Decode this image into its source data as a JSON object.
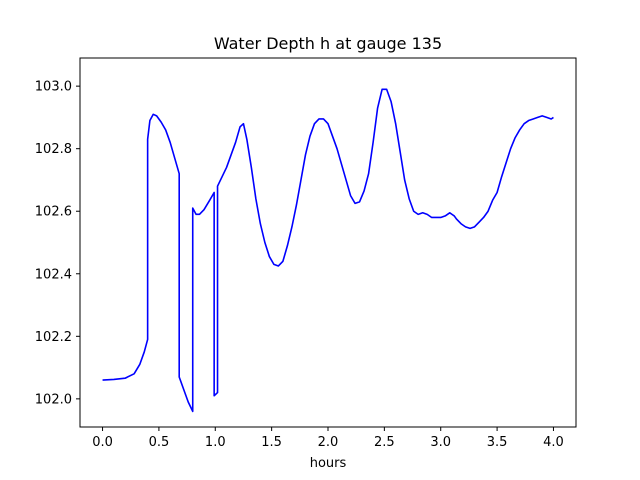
{
  "chart_data": {
    "type": "line",
    "title": "Water Depth h at gauge 135",
    "xlabel": "hours",
    "ylabel": "",
    "xlim": [
      -0.2,
      4.2
    ],
    "ylim": [
      101.91,
      103.09
    ],
    "grid": false,
    "xticks": [
      0.0,
      0.5,
      1.0,
      1.5,
      2.0,
      2.5,
      3.0,
      3.5,
      4.0
    ],
    "xtick_labels": [
      "0.0",
      "0.5",
      "1.0",
      "1.5",
      "2.0",
      "2.5",
      "3.0",
      "3.5",
      "4.0"
    ],
    "yticks": [
      102.0,
      102.2,
      102.4,
      102.6,
      102.8,
      103.0
    ],
    "ytick_labels": [
      "102.0",
      "102.2",
      "102.4",
      "102.6",
      "102.8",
      "103.0"
    ],
    "series": [
      {
        "color": "#0000ff",
        "x": [
          0.0,
          0.1,
          0.2,
          0.28,
          0.33,
          0.37,
          0.4,
          0.4,
          0.42,
          0.45,
          0.48,
          0.52,
          0.56,
          0.6,
          0.64,
          0.68,
          0.68,
          0.72,
          0.76,
          0.8,
          0.8,
          0.83,
          0.86,
          0.9,
          0.95,
          0.99,
          0.99,
          1.02,
          1.02,
          1.06,
          1.1,
          1.14,
          1.18,
          1.22,
          1.25,
          1.28,
          1.32,
          1.36,
          1.4,
          1.44,
          1.48,
          1.52,
          1.56,
          1.6,
          1.64,
          1.68,
          1.72,
          1.76,
          1.8,
          1.84,
          1.88,
          1.92,
          1.96,
          2.0,
          2.04,
          2.08,
          2.12,
          2.16,
          2.2,
          2.24,
          2.28,
          2.32,
          2.36,
          2.4,
          2.44,
          2.48,
          2.52,
          2.56,
          2.6,
          2.64,
          2.68,
          2.72,
          2.76,
          2.8,
          2.84,
          2.88,
          2.92,
          2.96,
          3.0,
          3.04,
          3.08,
          3.1,
          3.12,
          3.14,
          3.18,
          3.22,
          3.26,
          3.3,
          3.34,
          3.38,
          3.42,
          3.46,
          3.5,
          3.54,
          3.58,
          3.62,
          3.66,
          3.7,
          3.74,
          3.78,
          3.82,
          3.86,
          3.9,
          3.94,
          3.98,
          4.0
        ],
        "y": [
          102.06,
          102.062,
          102.066,
          102.08,
          102.11,
          102.15,
          102.19,
          102.83,
          102.89,
          102.91,
          102.905,
          102.885,
          102.86,
          102.82,
          102.77,
          102.72,
          102.07,
          102.03,
          101.99,
          101.96,
          102.61,
          102.59,
          102.59,
          102.605,
          102.635,
          102.66,
          102.01,
          102.02,
          102.68,
          102.71,
          102.74,
          102.78,
          102.82,
          102.87,
          102.88,
          102.83,
          102.74,
          102.64,
          102.56,
          102.5,
          102.455,
          102.43,
          102.425,
          102.44,
          102.49,
          102.55,
          102.62,
          102.7,
          102.78,
          102.84,
          102.88,
          102.895,
          102.895,
          102.88,
          102.84,
          102.8,
          102.75,
          102.7,
          102.65,
          102.625,
          102.63,
          102.665,
          102.72,
          102.82,
          102.93,
          102.99,
          102.99,
          102.95,
          102.88,
          102.79,
          102.7,
          102.64,
          102.6,
          102.59,
          102.595,
          102.59,
          102.58,
          102.58,
          102.58,
          102.585,
          102.595,
          102.59,
          102.585,
          102.575,
          102.56,
          102.55,
          102.545,
          102.55,
          102.565,
          102.58,
          102.6,
          102.635,
          102.66,
          102.71,
          102.755,
          102.8,
          102.835,
          102.86,
          102.88,
          102.89,
          102.895,
          102.9,
          102.905,
          102.9,
          102.895,
          102.9
        ]
      }
    ]
  }
}
